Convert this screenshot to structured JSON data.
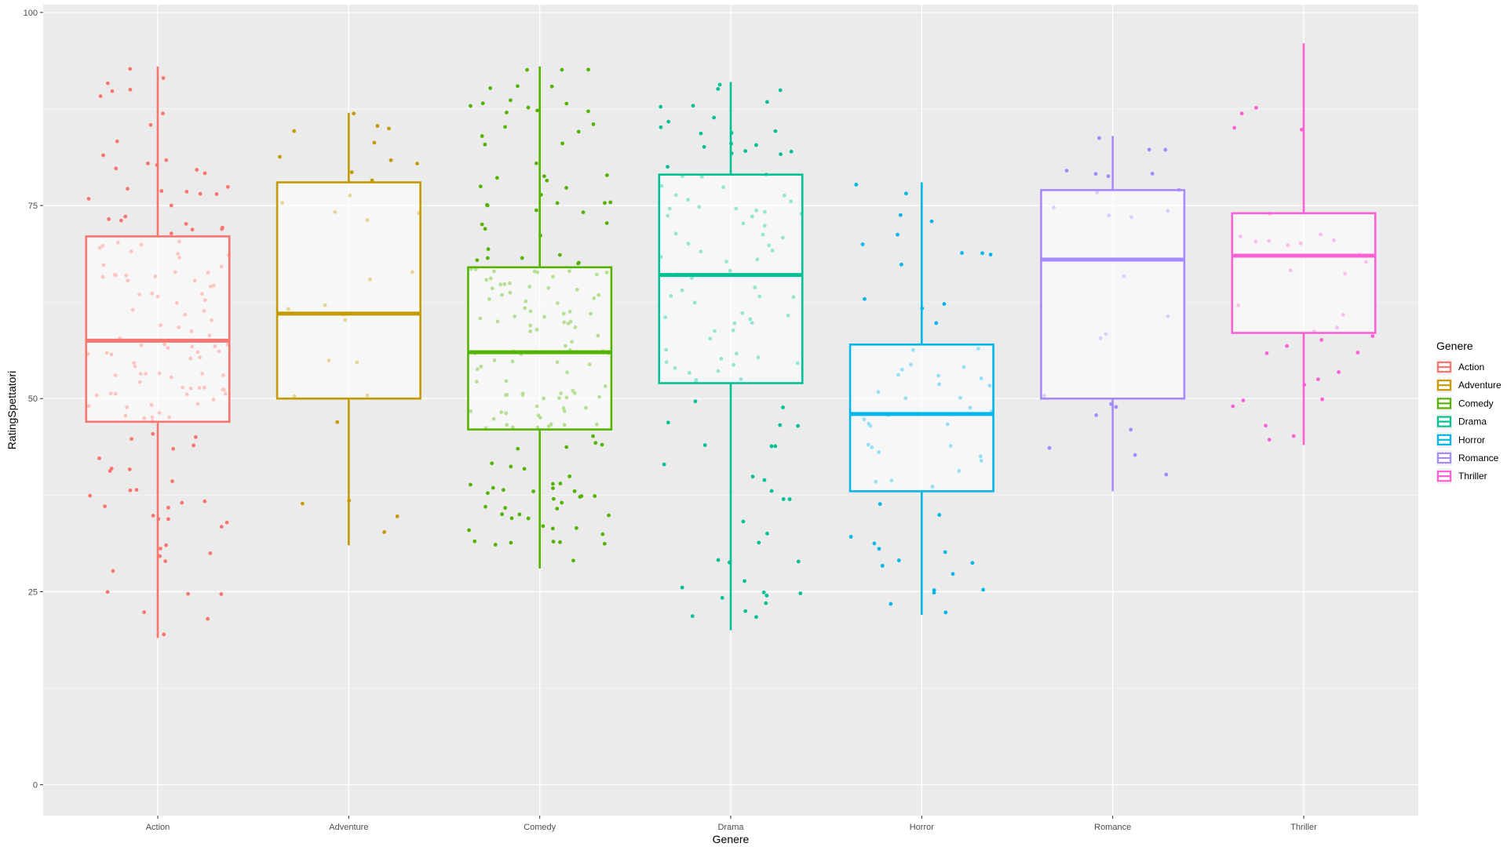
{
  "chart_data": {
    "type": "boxplot",
    "xlabel": "Genere",
    "ylabel": "RatingSpettatori",
    "ylim": [
      -4,
      101
    ],
    "y_ticks": [
      0,
      25,
      50,
      75,
      100
    ],
    "grid": true,
    "legend": {
      "title": "Genere",
      "placement": "right"
    },
    "categories": [
      "Action",
      "Adventure",
      "Comedy",
      "Drama",
      "Horror",
      "Romance",
      "Thriller"
    ],
    "series": [
      {
        "name": "Action",
        "color": "#F8766D",
        "min": 19,
        "q1": 47,
        "median": 57.5,
        "q3": 71,
        "max": 93
      },
      {
        "name": "Adventure",
        "color": "#C49A00",
        "min": 31,
        "q1": 50,
        "median": 61,
        "q3": 78,
        "max": 87
      },
      {
        "name": "Comedy",
        "color": "#53B400",
        "min": 28,
        "q1": 46,
        "median": 56,
        "q3": 67,
        "max": 93
      },
      {
        "name": "Drama",
        "color": "#00C094",
        "min": 20,
        "q1": 52,
        "median": 66,
        "q3": 79,
        "max": 91
      },
      {
        "name": "Horror",
        "color": "#00B6EB",
        "min": 22,
        "q1": 38,
        "median": 48,
        "q3": 57,
        "max": 78
      },
      {
        "name": "Romance",
        "color": "#A58AFF",
        "min": 38,
        "q1": 50,
        "median": 68,
        "q3": 77,
        "max": 84
      },
      {
        "name": "Thriller",
        "color": "#FB61D7",
        "min": 44,
        "q1": 58.5,
        "median": 68.5,
        "q3": 74,
        "max": 96
      }
    ],
    "points_count": [
      150,
      30,
      180,
      110,
      60,
      25,
      35
    ]
  }
}
